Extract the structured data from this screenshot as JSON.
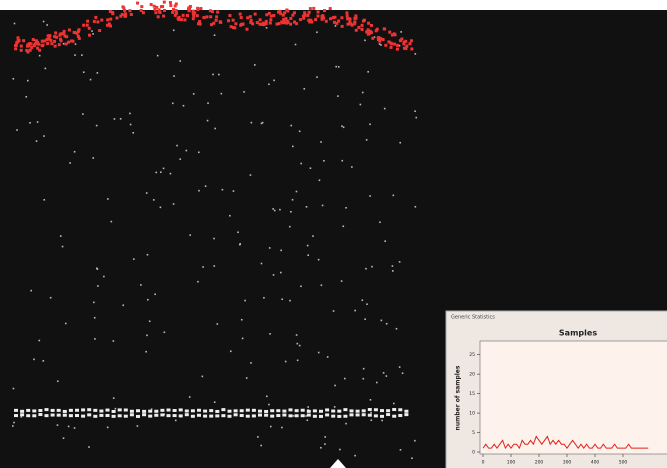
{
  "window_title": "Generic Statistics",
  "chart_data": {
    "type": "line",
    "title": "Samples",
    "y_label": "number of samples",
    "color": "#e0201b",
    "x": [
      0,
      10,
      20,
      30,
      40,
      50,
      60,
      70,
      80,
      90,
      100,
      110,
      120,
      130,
      140,
      150,
      160,
      170,
      180,
      190,
      200,
      210,
      220,
      230,
      240,
      250,
      260,
      270,
      280,
      290,
      300,
      310,
      320,
      330,
      340,
      350,
      360,
      370,
      380,
      390,
      400,
      410,
      420,
      430,
      440,
      450,
      460,
      470,
      480,
      490,
      500,
      510,
      520,
      530,
      540,
      550,
      560,
      570,
      580,
      590
    ],
    "values": [
      1,
      2,
      1,
      1,
      2,
      1,
      2,
      3,
      1,
      2,
      1,
      2,
      2,
      1,
      3,
      2,
      2,
      3,
      2,
      4,
      3,
      2,
      3,
      4,
      2,
      3,
      2,
      3,
      2,
      2,
      1,
      2,
      3,
      2,
      1,
      2,
      1,
      2,
      1,
      1,
      2,
      1,
      1,
      2,
      1,
      1,
      1,
      2,
      1,
      1,
      1,
      1,
      2,
      1,
      1,
      1,
      1,
      1,
      1,
      1
    ],
    "xlim": [
      0,
      600
    ],
    "ylim": [
      0,
      28
    ],
    "xticks": [
      0,
      100,
      200,
      300,
      400,
      500
    ],
    "yticks": [
      0,
      5,
      10,
      15,
      20,
      25
    ]
  }
}
